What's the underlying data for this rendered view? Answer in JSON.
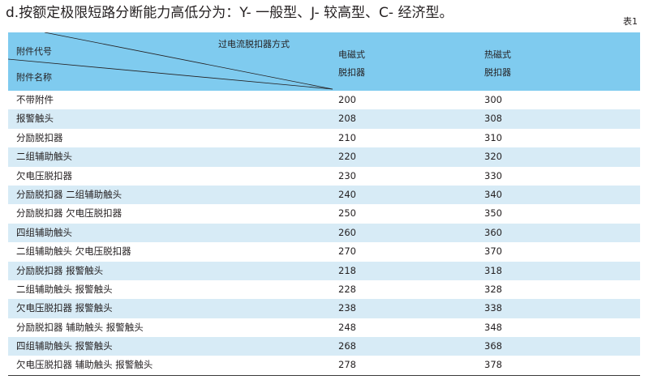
{
  "heading": "d.按额定极限短路分断能力高低分为：Y- 一般型、J- 较高型、C- 经济型。",
  "table_no": "表1",
  "header": {
    "type_label": "过电流脱扣器方式",
    "code_label": "附件代号",
    "name_label": "附件名称",
    "col1_line1": "电磁式",
    "col1_line2": "脱扣器",
    "col2_line1": "热磁式",
    "col2_line2": "脱扣器"
  },
  "rows": [
    {
      "name": "不带附件",
      "v1": "200",
      "v2": "300"
    },
    {
      "name": "报警触头",
      "v1": "208",
      "v2": "308"
    },
    {
      "name": "分励脱扣器",
      "v1": "210",
      "v2": "310"
    },
    {
      "name": "二组辅助触头",
      "v1": "220",
      "v2": "320"
    },
    {
      "name": "欠电压脱扣器",
      "v1": "230",
      "v2": "330"
    },
    {
      "name": "分励脱扣器  二组辅助触头",
      "v1": "240",
      "v2": "340"
    },
    {
      "name": "分励脱扣器  欠电压脱扣器",
      "v1": "250",
      "v2": "350"
    },
    {
      "name": "四组辅助触头",
      "v1": "260",
      "v2": "360"
    },
    {
      "name": "二组辅助触头  欠电压脱扣器",
      "v1": "270",
      "v2": "370"
    },
    {
      "name": "分励脱扣器  报警触头",
      "v1": "218",
      "v2": "318"
    },
    {
      "name": "二组辅助触头  报警触头",
      "v1": "228",
      "v2": "328"
    },
    {
      "name": "欠电压脱扣器  报警触头",
      "v1": "238",
      "v2": "338"
    },
    {
      "name": "分励脱扣器  辅助触头  报警触头",
      "v1": "248",
      "v2": "348"
    },
    {
      "name": "四组辅助触头  报警触头",
      "v1": "268",
      "v2": "368"
    },
    {
      "name": "欠电压脱扣器  辅助触头  报警触头",
      "v1": "278",
      "v2": "378"
    }
  ]
}
